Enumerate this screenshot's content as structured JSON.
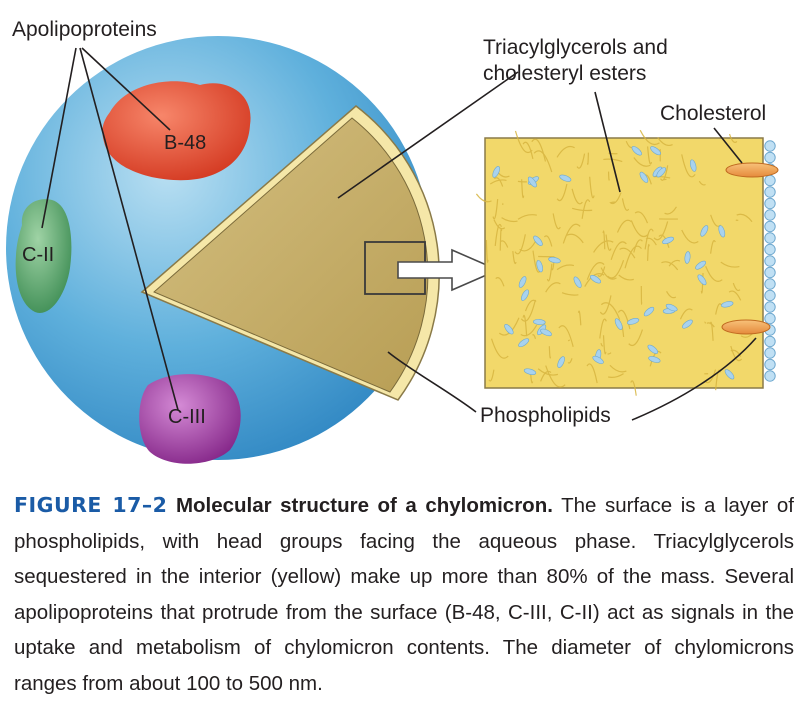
{
  "figure": {
    "labels": {
      "apolipoproteins": "Apolipoproteins",
      "b48": "B-48",
      "c2": "C-II",
      "c3": "C-III",
      "triacylglycerols_line1": "Triacylglycerols and",
      "triacylglycerols_line2": "cholesteryl esters",
      "cholesterol": "Cholesterol",
      "phospholipids": "Phospholipids"
    },
    "colors": {
      "particle": "#4da3d6",
      "b48": "#e0452a",
      "c2": "#5aa56a",
      "c3": "#9b3d9a",
      "core": "#c8b06a",
      "interior": "#f2d86a",
      "cholesterol": "#f0a25a",
      "phospholipid_head": "#a8d2ee"
    }
  },
  "caption": {
    "figure_number": "FIGURE 17–2",
    "title": "Molecular structure of a chylomicron.",
    "body": " The surface is a layer of phospholipids, with head groups facing the aqueous phase. Triacylglycerols sequestered in the interior (yellow) make up more than 80% of the mass. Several apolipoproteins that protrude from the surface (B-48, C-III, C-II) act as signals in the uptake and metabolism of chylomicron contents. The diameter of chylomicrons ranges from about 100 to 500 nm."
  }
}
